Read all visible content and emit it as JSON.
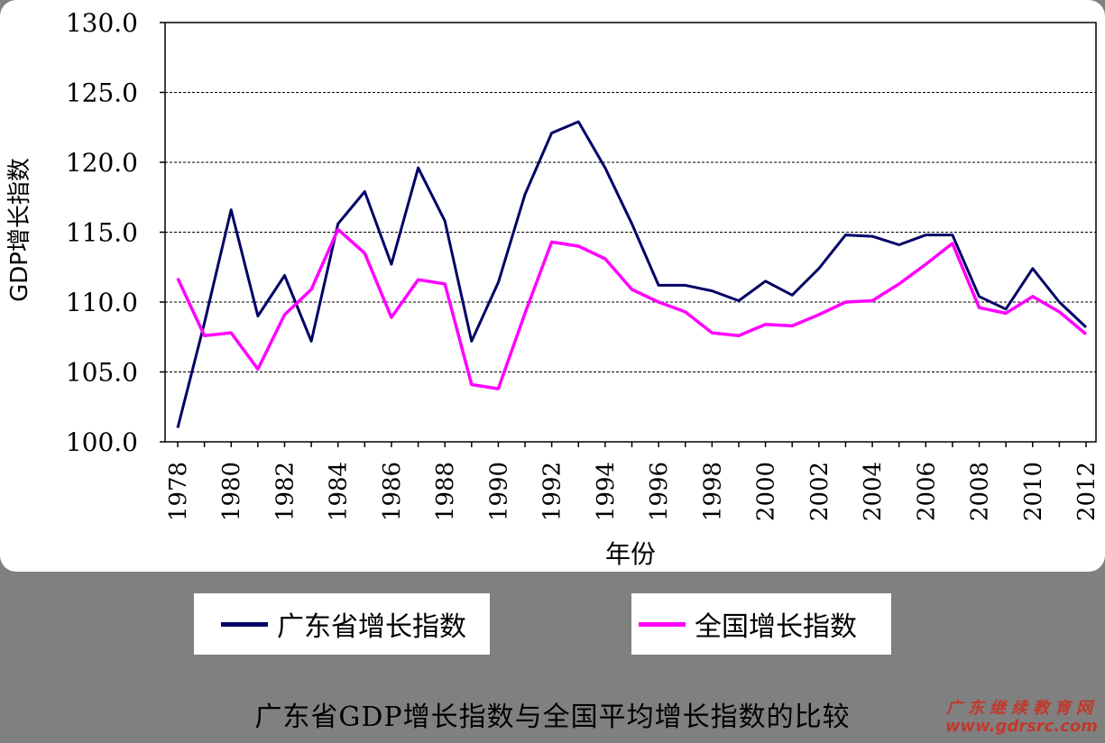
{
  "chart_data": {
    "type": "line",
    "title": "",
    "xlabel": "年份",
    "ylabel": "GDP增长指数",
    "ylim": [
      100,
      130
    ],
    "yticks": [
      "100.0",
      "105.0",
      "110.0",
      "115.0",
      "120.0",
      "125.0",
      "130.0"
    ],
    "xticks": [
      "1978",
      "1980",
      "1982",
      "1984",
      "1986",
      "1988",
      "1990",
      "1992",
      "1994",
      "1996",
      "1998",
      "2000",
      "2002",
      "2004",
      "2006",
      "2008",
      "2010",
      "2012"
    ],
    "grid": true,
    "legend_position": "bottom",
    "x": [
      1978,
      1979,
      1980,
      1981,
      1982,
      1983,
      1984,
      1985,
      1986,
      1987,
      1988,
      1989,
      1990,
      1991,
      1992,
      1993,
      1994,
      1995,
      1996,
      1997,
      1998,
      1999,
      2000,
      2001,
      2002,
      2003,
      2004,
      2005,
      2006,
      2007,
      2008,
      2009,
      2010,
      2011,
      2012
    ],
    "series": [
      {
        "name": "广东省增长指数",
        "color": "#000066",
        "values": [
          101.0,
          108.5,
          116.6,
          109.0,
          111.9,
          107.2,
          115.6,
          117.9,
          112.7,
          119.6,
          115.8,
          107.2,
          111.4,
          117.7,
          122.1,
          122.9,
          119.6,
          115.6,
          111.2,
          111.2,
          110.8,
          110.1,
          111.5,
          110.5,
          112.4,
          114.8,
          114.7,
          114.1,
          114.8,
          114.8,
          110.4,
          109.5,
          112.4,
          110.0,
          108.2
        ]
      },
      {
        "name": "全国增长指数",
        "color": "#ff00ff",
        "values": [
          111.7,
          107.6,
          107.8,
          105.2,
          109.1,
          110.9,
          115.2,
          113.5,
          108.9,
          111.6,
          111.3,
          104.1,
          103.8,
          109.2,
          114.3,
          114.0,
          113.1,
          110.9,
          110.0,
          109.3,
          107.8,
          107.6,
          108.4,
          108.3,
          109.1,
          110.0,
          110.1,
          111.3,
          112.7,
          114.2,
          109.6,
          109.2,
          110.4,
          109.3,
          107.7
        ]
      }
    ]
  },
  "caption": "广东省GDP增长指数与全国平均增长指数的比较",
  "watermark": {
    "name": "广东继续教育网",
    "url": "www.gdrsrc.com"
  }
}
